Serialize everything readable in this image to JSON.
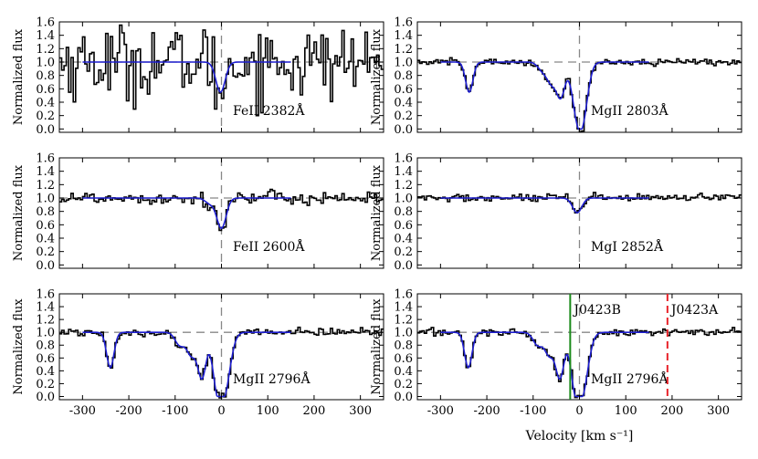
{
  "chart_data": {
    "type": "line",
    "layout": "3 rows x 2 columns of velocity-aligned absorption-line spectra",
    "xlabel": "Velocity [km s⁻¹]",
    "ylabel": "Normalized flux",
    "xlim": [
      -350,
      350
    ],
    "ylim": [
      -0.05,
      1.6
    ],
    "xticks": [
      -300,
      -200,
      -100,
      0,
      100,
      200,
      300
    ],
    "yticks": [
      0.0,
      0.2,
      0.4,
      0.6,
      0.8,
      1.0,
      1.2,
      1.4,
      1.6
    ],
    "colors": {
      "data": "#000000",
      "model": "#1f1fd0",
      "continuum": "#888888",
      "zero_line": "#888888",
      "J0423B": "#1a8a1a",
      "J0423A": "#e8242b"
    },
    "panels": [
      {
        "name": "panel-feii-2382",
        "label": "FeII 2382Å",
        "noise": 0.28,
        "components": [
          {
            "v": -2,
            "depth": 0.45,
            "width": 10
          }
        ],
        "x_tick_labels": false
      },
      {
        "name": "panel-mgii-2803",
        "label": "MgII 2803Å",
        "noise": 0.025,
        "components": [
          {
            "v": -238,
            "depth": 0.45,
            "width": 8
          },
          {
            "v": -80,
            "depth": 0.12,
            "width": 10
          },
          {
            "v": -60,
            "depth": 0.3,
            "width": 10
          },
          {
            "v": -40,
            "depth": 0.5,
            "width": 9
          },
          {
            "v": -10,
            "depth": 0.35,
            "width": 10
          },
          {
            "v": 5,
            "depth": 0.9,
            "width": 12
          }
        ],
        "x_tick_labels": false
      },
      {
        "name": "panel-feii-2600",
        "label": "FeII 2600Å",
        "noise": 0.05,
        "components": [
          {
            "v": -25,
            "depth": 0.08,
            "width": 10
          },
          {
            "v": 0,
            "depth": 0.45,
            "width": 10
          }
        ],
        "x_tick_labels": false
      },
      {
        "name": "panel-mgi-2852",
        "label": "MgI 2852Å",
        "noise": 0.03,
        "components": [
          {
            "v": -5,
            "depth": 0.22,
            "width": 10
          }
        ],
        "x_tick_labels": false
      },
      {
        "name": "panel-mgii-2796-left",
        "label": "MgII 2796Å",
        "noise": 0.03,
        "components": [
          {
            "v": -240,
            "depth": 0.55,
            "width": 8
          },
          {
            "v": -90,
            "depth": 0.2,
            "width": 10
          },
          {
            "v": -65,
            "depth": 0.35,
            "width": 10
          },
          {
            "v": -42,
            "depth": 0.7,
            "width": 9
          },
          {
            "v": -12,
            "depth": 0.5,
            "width": 9
          },
          {
            "v": 5,
            "depth": 0.97,
            "width": 13
          }
        ],
        "x_tick_labels": true
      },
      {
        "name": "panel-mgii-2796-right",
        "label": "MgII 2796Å",
        "noise": 0.03,
        "components": [
          {
            "v": -240,
            "depth": 0.55,
            "width": 8
          },
          {
            "v": -90,
            "depth": 0.2,
            "width": 10
          },
          {
            "v": -65,
            "depth": 0.35,
            "width": 10
          },
          {
            "v": -42,
            "depth": 0.7,
            "width": 9
          },
          {
            "v": -12,
            "depth": 0.5,
            "width": 9
          },
          {
            "v": 5,
            "depth": 0.97,
            "width": 13
          }
        ],
        "x_tick_labels": true,
        "markers": [
          {
            "name": "J0423B",
            "label": "J0423B",
            "v": -20,
            "style": "solid"
          },
          {
            "name": "J0423A",
            "label": "J0423A",
            "v": 190,
            "style": "dashed"
          }
        ]
      }
    ]
  }
}
